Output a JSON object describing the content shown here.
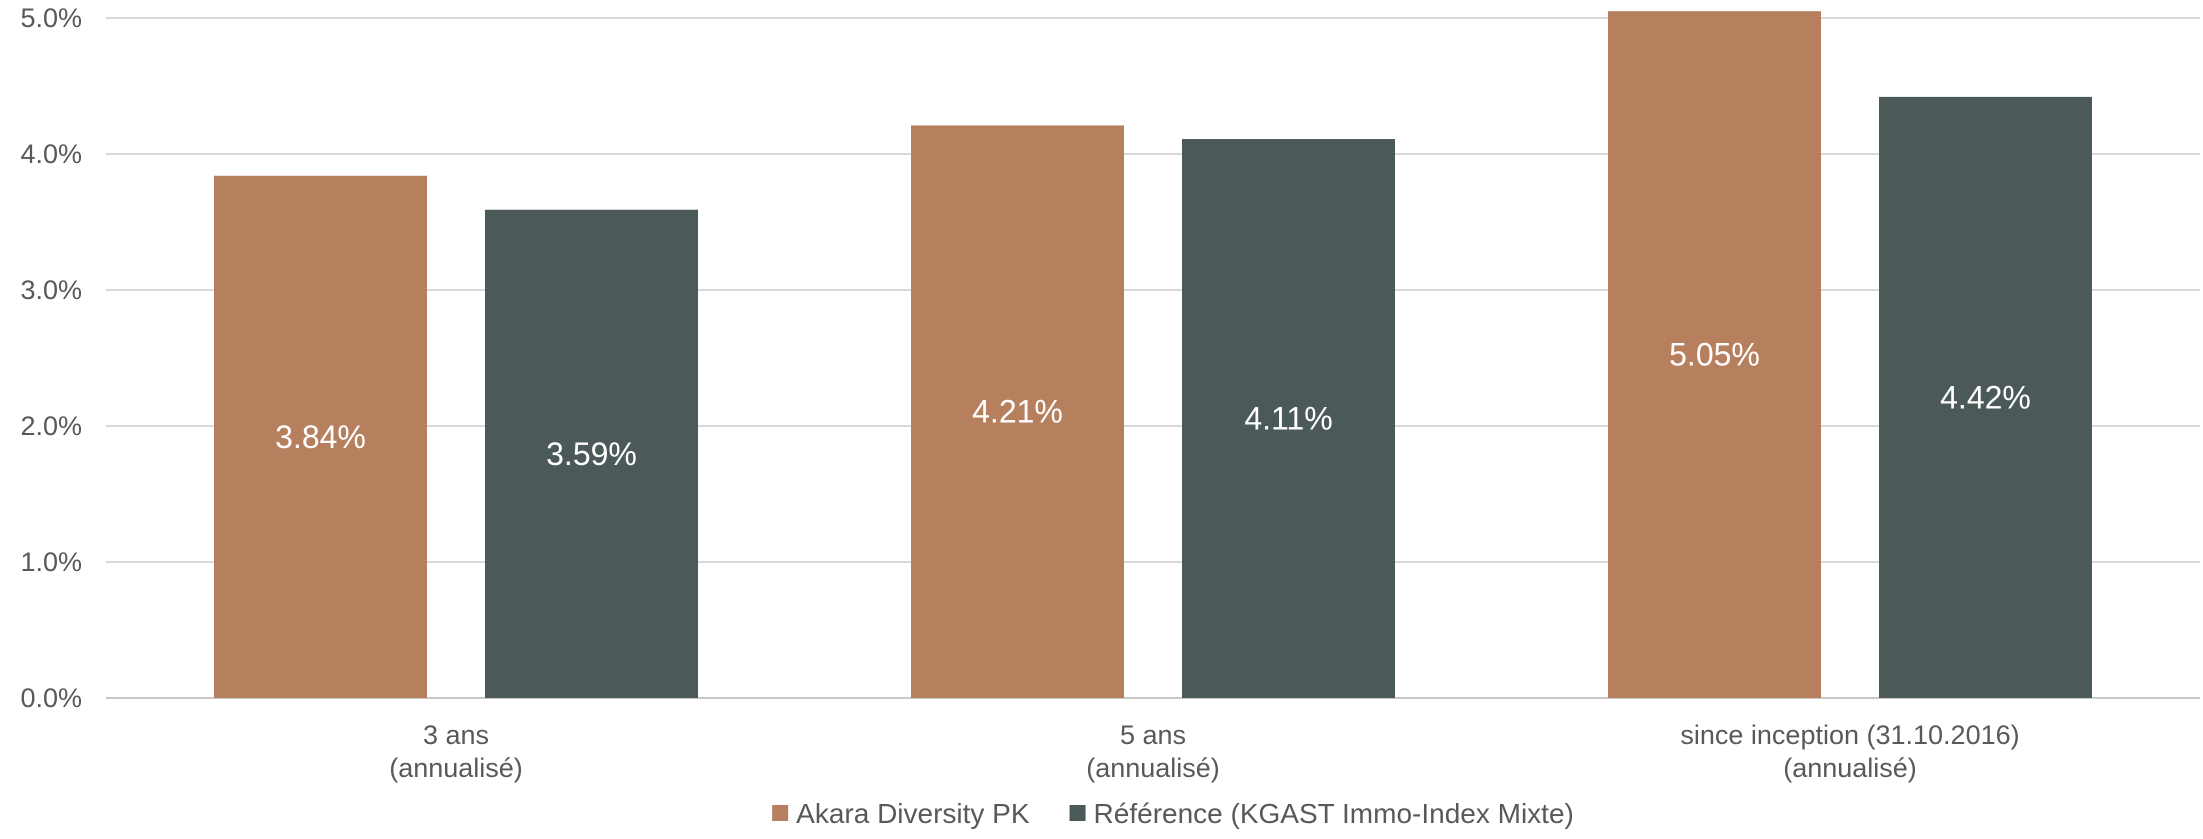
{
  "chart_data": {
    "type": "bar",
    "categories": [
      [
        "3 ans",
        "(annualisé)"
      ],
      [
        "5 ans",
        "(annualisé)"
      ],
      [
        "since inception (31.10.2016)",
        "(annualisé)"
      ]
    ],
    "series": [
      {
        "name": "Akara Diversity PK",
        "color": "#b67f5e",
        "values": [
          3.84,
          4.21,
          5.05
        ],
        "labels": [
          "3.84%",
          "4.21%",
          "5.05%"
        ]
      },
      {
        "name": "Référence (KGAST Immo-Index Mixte)",
        "color": "#4b5a59",
        "values": [
          3.59,
          4.11,
          4.42
        ],
        "labels": [
          "3.59%",
          "4.11%",
          "4.42%"
        ]
      }
    ],
    "ylim": [
      0,
      5
    ],
    "yticks": [
      0,
      1,
      2,
      3,
      4,
      5
    ],
    "ytick_labels": [
      "0.0%",
      "1.0%",
      "2.0%",
      "3.0%",
      "4.0%",
      "5.0%"
    ],
    "grid": true,
    "legend_position": "bottom-center",
    "title": "",
    "xlabel": "",
    "ylabel": ""
  }
}
